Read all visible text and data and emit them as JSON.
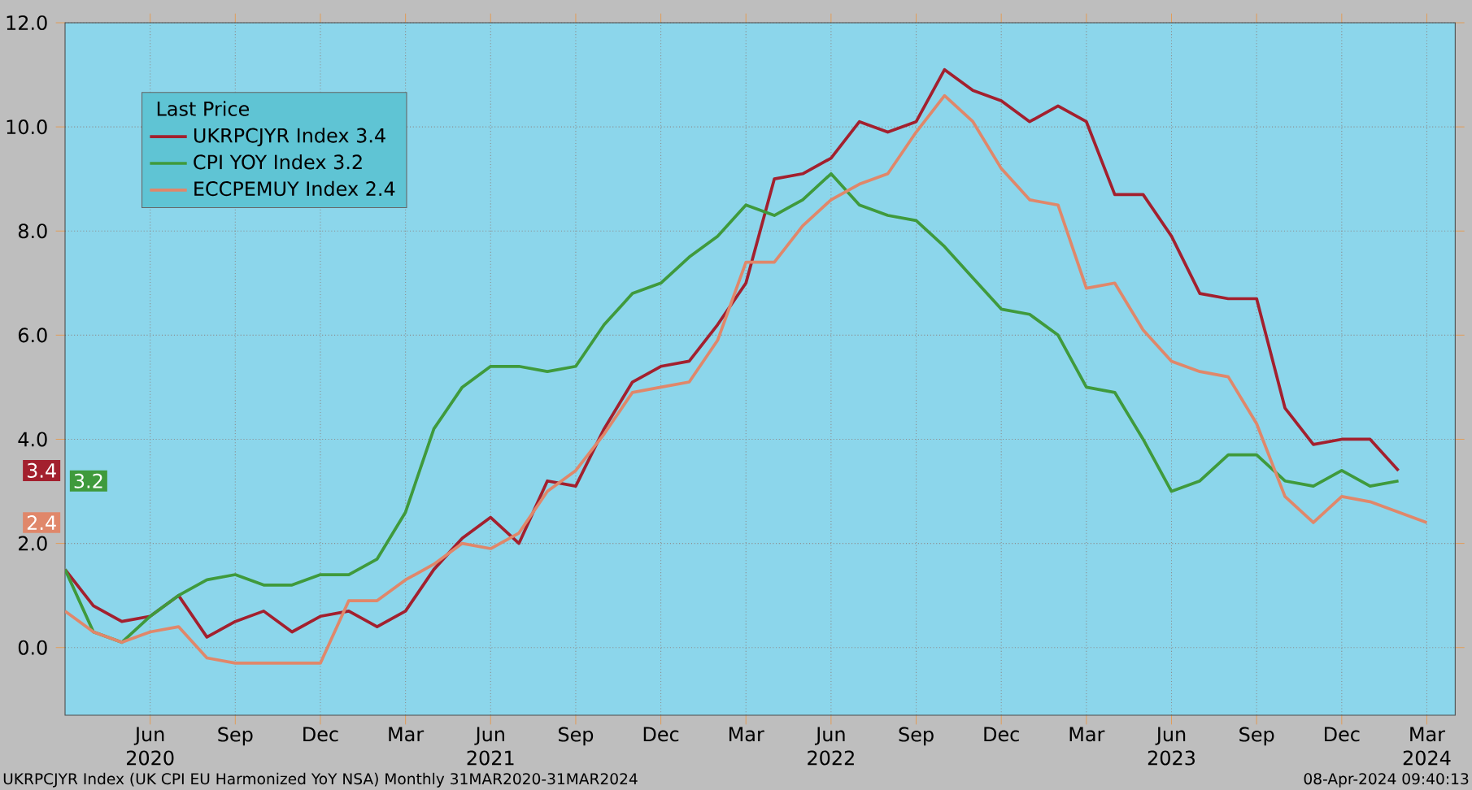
{
  "chart_data": {
    "type": "line",
    "legend_title": "Last Price",
    "x": [
      "2020-03",
      "2020-04",
      "2020-05",
      "2020-06",
      "2020-07",
      "2020-08",
      "2020-09",
      "2020-10",
      "2020-11",
      "2020-12",
      "2021-01",
      "2021-02",
      "2021-03",
      "2021-04",
      "2021-05",
      "2021-06",
      "2021-07",
      "2021-08",
      "2021-09",
      "2021-10",
      "2021-11",
      "2021-12",
      "2022-01",
      "2022-02",
      "2022-03",
      "2022-04",
      "2022-05",
      "2022-06",
      "2022-07",
      "2022-08",
      "2022-09",
      "2022-10",
      "2022-11",
      "2022-12",
      "2023-01",
      "2023-02",
      "2023-03",
      "2023-04",
      "2023-05",
      "2023-06",
      "2023-07",
      "2023-08",
      "2023-09",
      "2023-10",
      "2023-11",
      "2023-12",
      "2024-01",
      "2024-02",
      "2024-03"
    ],
    "series": [
      {
        "name": "UKRPCJYR Index 3.4",
        "color": "#a3202e",
        "values": [
          1.5,
          0.8,
          0.5,
          0.6,
          1.0,
          0.2,
          0.5,
          0.7,
          0.3,
          0.6,
          0.7,
          0.4,
          0.7,
          1.5,
          2.1,
          2.5,
          2.0,
          3.2,
          3.1,
          4.2,
          5.1,
          5.4,
          5.5,
          6.2,
          7.0,
          9.0,
          9.1,
          9.4,
          10.1,
          9.9,
          10.1,
          11.1,
          10.7,
          10.5,
          10.1,
          10.4,
          10.1,
          8.7,
          8.7,
          7.9,
          6.8,
          6.7,
          6.7,
          4.6,
          3.9,
          4.0,
          4.0,
          3.4,
          null
        ]
      },
      {
        "name": "CPI YOY Index 3.2",
        "color": "#3f9a3c",
        "values": [
          1.5,
          0.3,
          0.1,
          0.6,
          1.0,
          1.3,
          1.4,
          1.2,
          1.2,
          1.4,
          1.4,
          1.7,
          2.6,
          4.2,
          5.0,
          5.4,
          5.4,
          5.3,
          5.4,
          6.2,
          6.8,
          7.0,
          7.5,
          7.9,
          8.5,
          8.3,
          8.6,
          9.1,
          8.5,
          8.3,
          8.2,
          7.7,
          7.1,
          6.5,
          6.4,
          6.0,
          5.0,
          4.9,
          4.0,
          3.0,
          3.2,
          3.7,
          3.7,
          3.2,
          3.1,
          3.4,
          3.1,
          3.2,
          null
        ]
      },
      {
        "name": "ECCPEMUY Index 2.4",
        "color": "#e0876a",
        "values": [
          0.7,
          0.3,
          0.1,
          0.3,
          0.4,
          -0.2,
          -0.3,
          -0.3,
          -0.3,
          -0.3,
          0.9,
          0.9,
          1.3,
          1.6,
          2.0,
          1.9,
          2.2,
          3.0,
          3.4,
          4.1,
          4.9,
          5.0,
          5.1,
          5.9,
          7.4,
          7.4,
          8.1,
          8.6,
          8.9,
          9.1,
          9.9,
          10.6,
          10.1,
          9.2,
          8.6,
          8.5,
          6.9,
          7.0,
          6.1,
          5.5,
          5.3,
          5.2,
          4.3,
          2.9,
          2.4,
          2.9,
          2.8,
          2.6,
          2.4
        ]
      }
    ],
    "xlim": [
      "2020-03",
      "2024-04"
    ],
    "xticks": [
      {
        "value": "2020-06",
        "label": "Jun 2020"
      },
      {
        "value": "2020-09",
        "label": "Sep"
      },
      {
        "value": "2020-12",
        "label": "Dec"
      },
      {
        "value": "2021-03",
        "label": "Mar"
      },
      {
        "value": "2021-06",
        "label": "Jun 2021"
      },
      {
        "value": "2021-09",
        "label": "Sep"
      },
      {
        "value": "2021-12",
        "label": "Dec"
      },
      {
        "value": "2022-03",
        "label": "Mar"
      },
      {
        "value": "2022-06",
        "label": "Jun 2022"
      },
      {
        "value": "2022-09",
        "label": "Sep"
      },
      {
        "value": "2022-12",
        "label": "Dec"
      },
      {
        "value": "2023-03",
        "label": "Mar"
      },
      {
        "value": "2023-06",
        "label": "Jun 2023"
      },
      {
        "value": "2023-09",
        "label": "Sep"
      },
      {
        "value": "2023-12",
        "label": "Dec"
      },
      {
        "value": "2024-03",
        "label": "Mar 2024"
      }
    ],
    "ylim": [
      -1.3,
      12.0
    ],
    "yticks": [
      {
        "value": 0,
        "label": "0.0"
      },
      {
        "value": 2,
        "label": "2.0"
      },
      {
        "value": 4,
        "label": "4.0"
      },
      {
        "value": 6,
        "label": "6.0"
      },
      {
        "value": 8,
        "label": "8.0"
      },
      {
        "value": 10,
        "label": "10.0"
      },
      {
        "value": 12,
        "label": "12.0"
      }
    ],
    "grid": true,
    "legend": "top left",
    "marker": "none",
    "line_style": "solid",
    "annotations": [
      {
        "text": "3.4",
        "y": 3.4
      },
      {
        "text": "3.2",
        "y": 3.2
      },
      {
        "text": "2.4",
        "y": 2.4
      },
      "UKRPCJYR Index (UK CPI EU Harmonized YoY NSA)  Monthly 31MAR2020-31MAR2024",
      "08-Apr-2024 09:40:13"
    ]
  }
}
